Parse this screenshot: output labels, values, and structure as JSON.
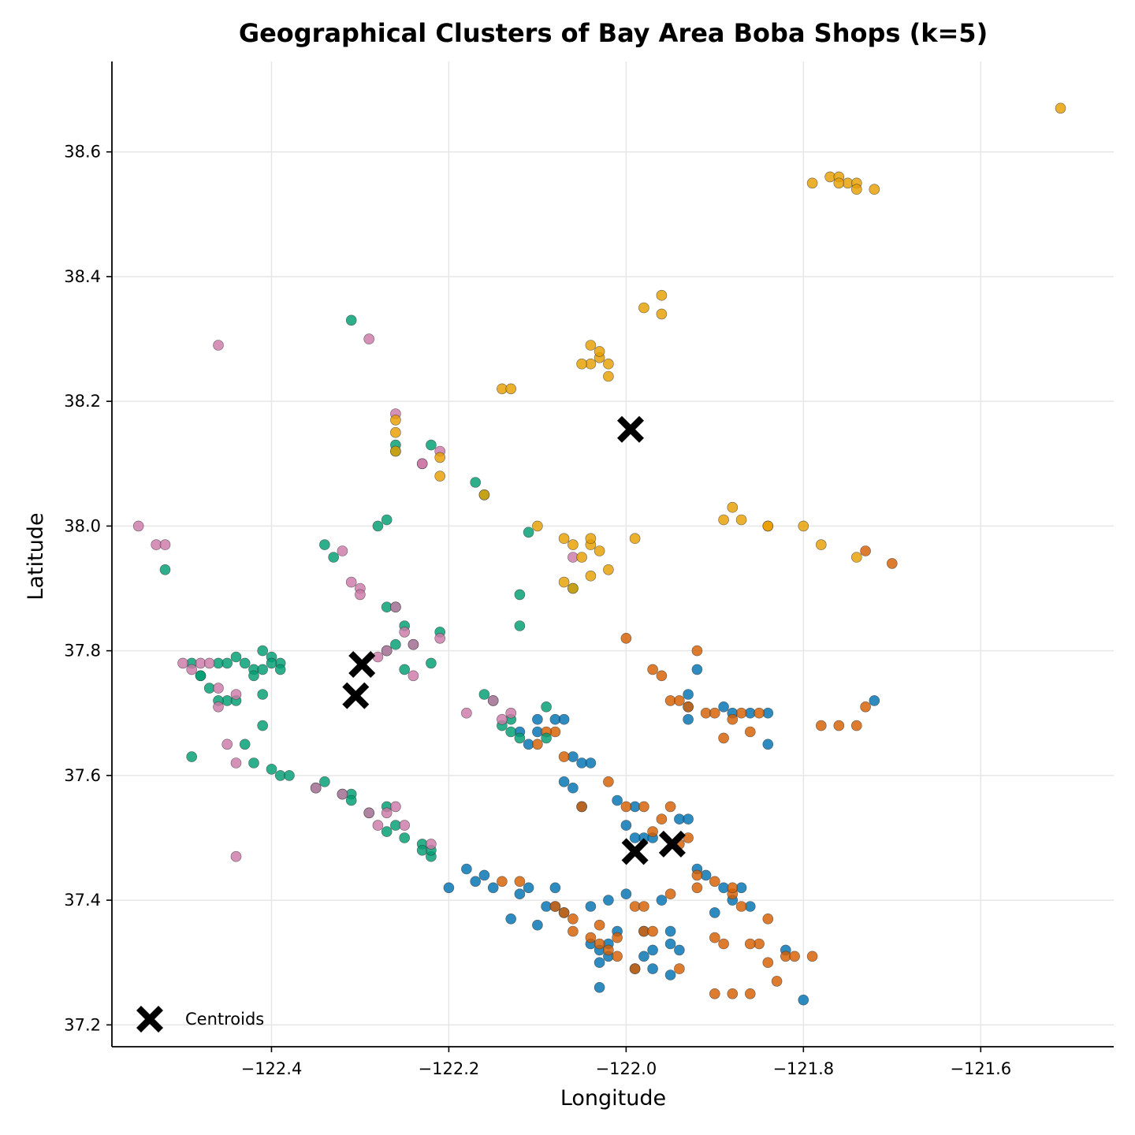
{
  "chart_data": {
    "type": "scatter",
    "title": "Geographical Clusters of Bay Area Boba Shops (k=5)",
    "xlabel": "Longitude",
    "ylabel": "Latitude",
    "xlim": [
      -122.58,
      -121.45
    ],
    "ylim": [
      37.165,
      38.745
    ],
    "xticks": [
      -122.4,
      -122.2,
      -122.0,
      -121.8,
      -121.6
    ],
    "xtick_labels": [
      "−122.4",
      "−122.2",
      "−122.0",
      "−121.8",
      "−121.6"
    ],
    "yticks": [
      37.2,
      37.4,
      37.6,
      37.8,
      38.0,
      38.2,
      38.4,
      38.6
    ],
    "ytick_labels": [
      "37.2",
      "37.4",
      "37.6",
      "37.8",
      "38.0",
      "38.2",
      "38.4",
      "38.6"
    ],
    "grid": true,
    "legend": {
      "placement": "lower-left",
      "entries": [
        "Centroids"
      ]
    },
    "colors": {
      "cluster_blue": "#0072B2",
      "cluster_orange": "#D55E00",
      "cluster_green": "#009E73",
      "cluster_pink": "#CC79A7",
      "cluster_gold": "#E69F00",
      "centroid": "#000000"
    },
    "series": [
      {
        "color": "#0072B2",
        "x": [
          -122.2,
          -122.18,
          -122.17,
          -122.16,
          -122.15,
          -122.13,
          -122.12,
          -122.11,
          -122.1,
          -122.09,
          -122.08,
          -122.07,
          -122.06,
          -122.05,
          -122.04,
          -122.03,
          -122.02,
          -122.01,
          -122.0,
          -121.99,
          -121.98,
          -121.97,
          -121.96,
          -121.95,
          -121.94,
          -121.93,
          -121.92,
          -121.91,
          -121.9,
          -121.89,
          -121.88,
          -121.87,
          -121.86,
          -121.84,
          -121.82,
          -121.8,
          -122.03,
          -122.03,
          -122.01,
          -121.99,
          -121.98,
          -121.97,
          -121.95,
          -121.93,
          -122.04,
          -122.02,
          -122.0,
          -121.98,
          -122.11,
          -122.1,
          -122.08,
          -122.07,
          -122.06,
          -122.05,
          -122.04,
          -122.12,
          -122.1,
          -122.08,
          -122.07,
          -122.02,
          -121.99,
          -121.97,
          -121.95,
          -121.94,
          -121.93,
          -121.93,
          -121.92,
          -121.89,
          -121.88,
          -121.86,
          -121.84,
          -121.72
        ],
        "y": [
          37.42,
          37.45,
          37.43,
          37.44,
          37.42,
          37.37,
          37.41,
          37.42,
          37.36,
          37.39,
          37.39,
          37.59,
          37.58,
          37.55,
          37.33,
          37.3,
          37.33,
          37.56,
          37.52,
          37.55,
          37.5,
          37.5,
          37.4,
          37.33,
          37.53,
          37.53,
          37.45,
          37.44,
          37.38,
          37.42,
          37.4,
          37.42,
          37.39,
          37.7,
          37.32,
          37.24,
          37.26,
          37.32,
          37.35,
          37.29,
          37.31,
          37.29,
          37.35,
          37.73,
          37.39,
          37.4,
          37.41,
          37.35,
          37.65,
          37.69,
          37.69,
          37.69,
          37.63,
          37.62,
          37.62,
          37.67,
          37.67,
          37.42,
          37.38,
          37.31,
          37.5,
          37.32,
          37.28,
          37.32,
          37.71,
          37.69,
          37.77,
          37.71,
          37.7,
          37.7,
          37.65,
          37.72
        ]
      },
      {
        "color": "#D55E00",
        "x": [
          -122.14,
          -122.12,
          -122.1,
          -122.08,
          -122.07,
          -122.06,
          -122.05,
          -122.04,
          -122.03,
          -122.02,
          -122.01,
          -122.0,
          -121.99,
          -121.98,
          -121.97,
          -121.96,
          -121.95,
          -121.94,
          -121.93,
          -121.92,
          -121.91,
          -121.9,
          -121.89,
          -121.88,
          -121.87,
          -121.86,
          -121.85,
          -121.84,
          -121.83,
          -121.82,
          -121.81,
          -121.79,
          -122.03,
          -122.02,
          -122.01,
          -121.99,
          -121.98,
          -121.97,
          -121.95,
          -121.94,
          -121.9,
          -121.88,
          -121.86,
          -121.84,
          -122.0,
          -121.98,
          -121.96,
          -121.94,
          -121.92,
          -121.9,
          -121.88,
          -121.87,
          -121.85,
          -121.78,
          -121.76,
          -121.74,
          -121.73,
          -121.73,
          -121.7,
          -122.09,
          -122.08,
          -122.07,
          -122.06,
          -121.97,
          -121.95,
          -121.93,
          -121.92,
          -121.9,
          -121.89,
          -121.88,
          -121.86
        ],
        "y": [
          37.43,
          37.43,
          37.65,
          37.67,
          37.63,
          37.37,
          37.55,
          37.34,
          37.36,
          37.59,
          37.31,
          37.55,
          37.39,
          37.35,
          37.77,
          37.76,
          37.72,
          37.72,
          37.71,
          37.8,
          37.7,
          37.7,
          37.66,
          37.69,
          37.7,
          37.67,
          37.7,
          37.37,
          37.27,
          37.31,
          37.31,
          37.31,
          37.33,
          37.32,
          37.34,
          37.29,
          37.39,
          37.35,
          37.41,
          37.29,
          37.25,
          37.25,
          37.25,
          37.3,
          37.82,
          37.55,
          37.53,
          37.49,
          37.42,
          37.43,
          37.41,
          37.39,
          37.33,
          37.68,
          37.68,
          37.68,
          37.96,
          37.71,
          37.94,
          37.67,
          37.39,
          37.38,
          37.35,
          37.51,
          37.55,
          37.5,
          37.44,
          37.34,
          37.33,
          37.42,
          37.33
        ]
      },
      {
        "color": "#009E73",
        "x": [
          -122.49,
          -122.48,
          -122.47,
          -122.46,
          -122.45,
          -122.44,
          -122.43,
          -122.42,
          -122.41,
          -122.4,
          -122.39,
          -122.42,
          -122.41,
          -122.4,
          -122.39,
          -122.48,
          -122.46,
          -122.45,
          -122.44,
          -122.43,
          -122.41,
          -122.41,
          -122.49,
          -122.42,
          -122.4,
          -122.39,
          -122.38,
          -122.35,
          -122.34,
          -122.32,
          -122.31,
          -122.31,
          -122.29,
          -122.27,
          -122.27,
          -122.26,
          -122.25,
          -122.23,
          -122.23,
          -122.22,
          -122.52,
          -122.34,
          -122.33,
          -122.31,
          -122.28,
          -122.27,
          -122.27,
          -122.26,
          -122.25,
          -122.24,
          -122.22,
          -122.21,
          -122.27,
          -122.26,
          -122.25,
          -122.26,
          -122.22,
          -122.17,
          -122.16,
          -122.16,
          -122.15,
          -122.14,
          -122.13,
          -122.13,
          -122.12,
          -122.11,
          -122.09,
          -122.06,
          -122.12,
          -122.12,
          -122.09,
          -122.26,
          -122.22
        ],
        "y": [
          37.78,
          37.76,
          37.74,
          37.78,
          37.72,
          37.79,
          37.78,
          37.77,
          37.8,
          37.79,
          37.78,
          37.76,
          37.77,
          37.78,
          37.77,
          37.76,
          37.72,
          37.78,
          37.72,
          37.65,
          37.73,
          37.68,
          37.63,
          37.62,
          37.61,
          37.6,
          37.6,
          37.58,
          37.59,
          37.57,
          37.57,
          37.56,
          37.54,
          37.51,
          37.55,
          37.52,
          37.5,
          37.49,
          37.48,
          37.47,
          37.93,
          37.97,
          37.95,
          38.33,
          38.0,
          38.01,
          37.87,
          37.87,
          37.84,
          37.81,
          37.78,
          37.83,
          37.8,
          37.81,
          37.77,
          38.13,
          38.13,
          38.07,
          38.05,
          37.73,
          37.72,
          37.68,
          37.69,
          37.67,
          37.66,
          37.99,
          37.71,
          37.9,
          37.89,
          37.84,
          37.66,
          38.12,
          37.48
        ]
      },
      {
        "color": "#CC79A7",
        "x": [
          -122.55,
          -122.53,
          -122.52,
          -122.5,
          -122.49,
          -122.48,
          -122.47,
          -122.46,
          -122.45,
          -122.44,
          -122.46,
          -122.46,
          -122.44,
          -122.32,
          -122.31,
          -122.3,
          -122.3,
          -122.29,
          -122.28,
          -122.27,
          -122.26,
          -122.25,
          -122.24,
          -122.24,
          -122.18,
          -122.15,
          -122.14,
          -122.13,
          -122.26,
          -122.23,
          -122.23,
          -122.21,
          -122.06,
          -122.29,
          -122.28,
          -122.27,
          -122.26,
          -122.25,
          -122.44,
          -122.35,
          -122.32,
          -122.22,
          -122.21
        ],
        "y": [
          38.0,
          37.97,
          37.97,
          37.78,
          37.77,
          37.78,
          37.78,
          37.74,
          37.65,
          37.47,
          38.29,
          37.71,
          37.73,
          37.96,
          37.91,
          37.9,
          37.89,
          38.3,
          37.79,
          37.8,
          37.87,
          37.83,
          37.76,
          37.81,
          37.7,
          37.72,
          37.69,
          37.7,
          38.18,
          38.1,
          38.1,
          38.12,
          37.95,
          37.54,
          37.52,
          37.54,
          37.55,
          37.52,
          37.62,
          37.58,
          37.57,
          37.49,
          37.82
        ]
      },
      {
        "color": "#E69F00",
        "x": [
          -121.51,
          -121.79,
          -121.77,
          -121.76,
          -121.75,
          -121.74,
          -121.74,
          -121.72,
          -121.76,
          -121.98,
          -121.96,
          -121.96,
          -122.04,
          -122.04,
          -122.05,
          -122.03,
          -122.03,
          -122.02,
          -122.02,
          -122.14,
          -122.13,
          -122.26,
          -122.21,
          -122.21,
          -122.16,
          -122.07,
          -122.06,
          -122.05,
          -122.04,
          -122.04,
          -122.03,
          -122.1,
          -122.02,
          -121.99,
          -121.88,
          -121.87,
          -121.89,
          -121.84,
          -121.84,
          -121.8,
          -121.78,
          -121.74,
          -122.07,
          -122.06,
          -122.04,
          -122.26,
          -122.26
        ],
        "y": [
          38.67,
          38.55,
          38.56,
          38.56,
          38.55,
          38.55,
          38.54,
          38.54,
          38.55,
          38.35,
          38.37,
          38.34,
          38.29,
          38.26,
          38.26,
          38.27,
          38.28,
          38.24,
          38.26,
          38.22,
          38.22,
          38.17,
          38.11,
          38.08,
          38.05,
          37.98,
          37.97,
          37.95,
          37.97,
          37.98,
          37.96,
          38.0,
          37.93,
          37.98,
          38.03,
          38.01,
          38.01,
          38.0,
          38.0,
          38.0,
          37.97,
          37.95,
          37.91,
          37.9,
          37.92,
          38.15,
          38.12
        ]
      }
    ],
    "centroids": {
      "name": "Centroids",
      "x": [
        -121.995,
        -122.298,
        -122.305,
        -121.99,
        -121.948
      ],
      "y": [
        38.155,
        37.778,
        37.728,
        37.478,
        37.49
      ]
    }
  }
}
